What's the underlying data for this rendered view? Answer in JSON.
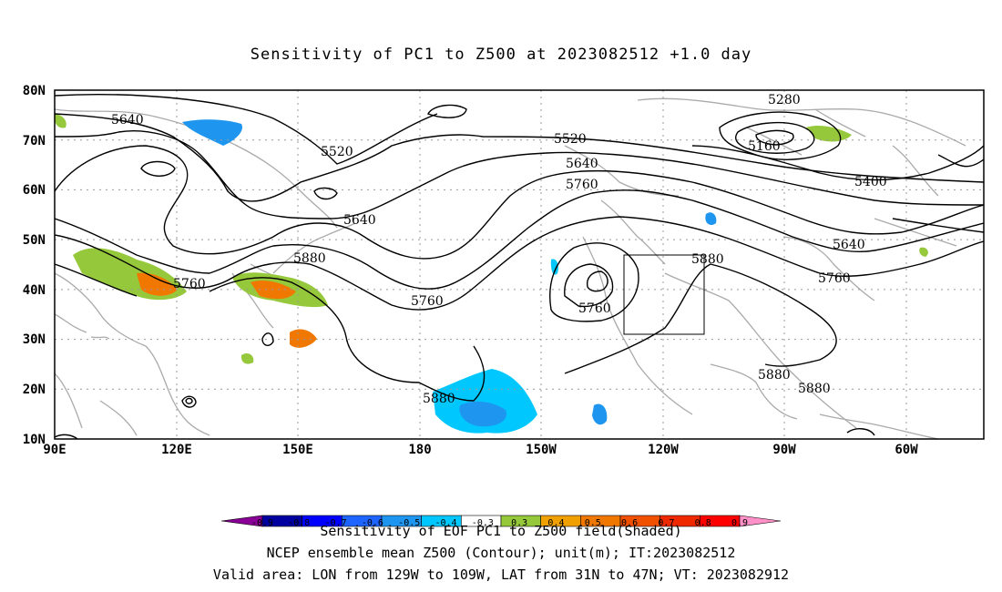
{
  "title": "Sensitivity of PC1 to Z500 at 2023082512 +1.0 day",
  "lat_labels": [
    "80N",
    "70N",
    "60N",
    "50N",
    "40N",
    "30N",
    "20N",
    "10N"
  ],
  "lon_labels": [
    "90E",
    "120E",
    "150E",
    "180",
    "150W",
    "120W",
    "90W",
    "60W"
  ],
  "contour_labels": [
    {
      "text": "5640"
    },
    {
      "text": "5520"
    },
    {
      "text": "5640"
    },
    {
      "text": "5880"
    },
    {
      "text": "5760"
    },
    {
      "text": "5760"
    },
    {
      "text": "5520"
    },
    {
      "text": "5640"
    },
    {
      "text": "5760"
    },
    {
      "text": "5760"
    },
    {
      "text": "5880"
    },
    {
      "text": "5280"
    },
    {
      "text": "5160"
    },
    {
      "text": "5400"
    },
    {
      "text": "5640"
    },
    {
      "text": "5760"
    },
    {
      "text": "5880"
    },
    {
      "text": "5880"
    },
    {
      "text": "5880"
    }
  ],
  "colorbar": {
    "ticks": [
      "-0.9",
      "-0.8",
      "-0.7",
      "-0.6",
      "-0.5",
      "-0.4",
      "-0.3",
      "0.3",
      "0.4",
      "0.5",
      "0.6",
      "0.7",
      "0.8",
      "0.9"
    ],
    "colors": [
      "#8a0096",
      "#0000a0",
      "#0000ff",
      "#1e64ff",
      "#1e96f0",
      "#00c8ff",
      "#ffffff",
      "#96c83c",
      "#f0a000",
      "#f07800",
      "#f05000",
      "#f02800",
      "#ff0000",
      "#ff90c8"
    ]
  },
  "footer": {
    "line1": "Sensitivity of EOF PC1 to Z500 field(Shaded)",
    "line2": "NCEP ensemble mean Z500 (Contour); unit(m); IT:2023082512",
    "line3": "Valid area: LON from 129W to 109W, LAT from 31N to 47N; VT: 2023082912"
  }
}
